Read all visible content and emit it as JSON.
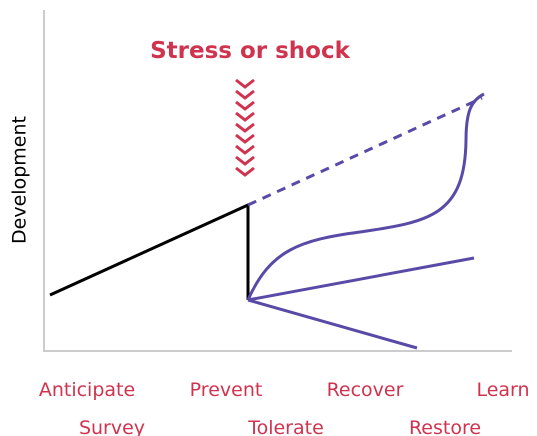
{
  "title": "Stress or shock",
  "y_axis_label": "Development",
  "x_labels": {
    "row1": [
      "Anticipate",
      "Prevent",
      "Recover",
      "Learn"
    ],
    "row2": [
      "Survey",
      "Tolerate",
      "Restore"
    ]
  }
}
